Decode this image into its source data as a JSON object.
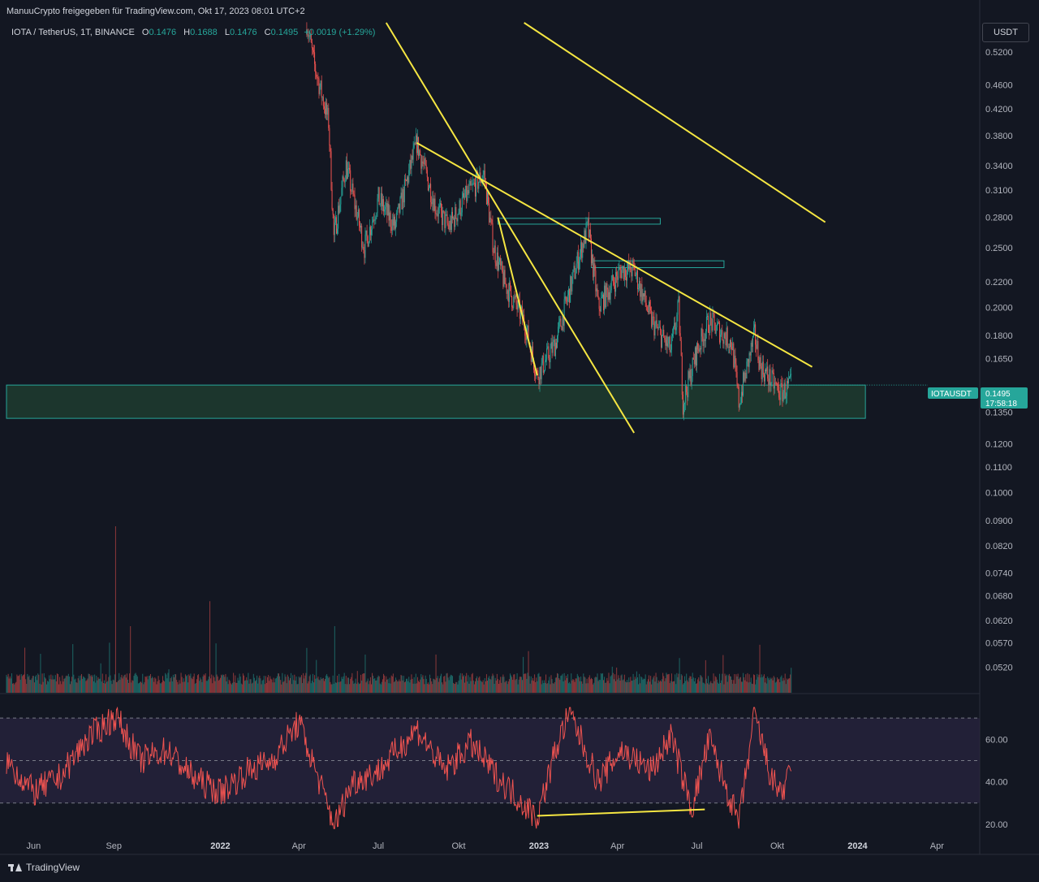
{
  "header": {
    "credit": "ManuuCrypto freigegeben für TradingView.com, Okt 17, 2023 08:01 UTC+2"
  },
  "legend": {
    "symbol": "IOTA / TetherUS, 1T, BINANCE",
    "o_label": "O",
    "o_value": "0.1476",
    "h_label": "H",
    "h_value": "0.1688",
    "l_label": "L",
    "l_value": "0.1476",
    "c_label": "C",
    "c_value": "0.1495",
    "change": "+0.0019 (+1.29%)"
  },
  "toolbar": {
    "currency": "USDT"
  },
  "price_tag": {
    "symbol": "IOTAUSDT",
    "price": "0.1495",
    "countdown": "17:58:18"
  },
  "footer": {
    "brand": "TradingView"
  },
  "colors": {
    "background": "#131722",
    "up": "#26a69a",
    "down": "#ef5350",
    "trendline": "#f5e642",
    "zone_border": "#26a69a",
    "zone_fill": "#1e3a2f",
    "rsi_line": "#ef5350",
    "rsi_band": "#2a2540",
    "price_tag_bg": "#26a69a"
  },
  "chart_data": {
    "type": "candlestick",
    "symbol": "IOTAUSDT",
    "exchange": "BINANCE",
    "interval": "1T",
    "y_scale": "log",
    "ylim": [
      0.048,
      0.58
    ],
    "price_ticks": [
      "0.5200",
      "0.4600",
      "0.4200",
      "0.3800",
      "0.3400",
      "0.3100",
      "0.2800",
      "0.2500",
      "0.2200",
      "0.2000",
      "0.1800",
      "0.1650",
      "0.1350",
      "0.1200",
      "0.1100",
      "0.1000",
      "0.0900",
      "0.0820",
      "0.0740",
      "0.0680",
      "0.0620",
      "0.0570",
      "0.0520"
    ],
    "x_ticks": [
      "Jun",
      "Sep",
      "2022",
      "Apr",
      "Jul",
      "Okt",
      "2023",
      "Apr",
      "Jul",
      "Okt",
      "2024",
      "Apr"
    ],
    "x_tick_dates": [
      "2021-06-01",
      "2021-09-01",
      "2022-01-01",
      "2022-04-01",
      "2022-07-01",
      "2022-10-01",
      "2023-01-01",
      "2023-04-01",
      "2023-07-01",
      "2023-10-01",
      "2024-01-01",
      "2024-04-01"
    ],
    "price_path": [
      {
        "date": "2022-04-10",
        "price": 0.58
      },
      {
        "date": "2022-04-18",
        "price": 0.5
      },
      {
        "date": "2022-05-05",
        "price": 0.4
      },
      {
        "date": "2022-05-11",
        "price": 0.26
      },
      {
        "date": "2022-05-25",
        "price": 0.34
      },
      {
        "date": "2022-06-15",
        "price": 0.25
      },
      {
        "date": "2022-07-01",
        "price": 0.3
      },
      {
        "date": "2022-07-20",
        "price": 0.27
      },
      {
        "date": "2022-08-14",
        "price": 0.37
      },
      {
        "date": "2022-09-05",
        "price": 0.29
      },
      {
        "date": "2022-09-20",
        "price": 0.27
      },
      {
        "date": "2022-10-08",
        "price": 0.3
      },
      {
        "date": "2022-10-30",
        "price": 0.33
      },
      {
        "date": "2022-11-10",
        "price": 0.25
      },
      {
        "date": "2022-11-22",
        "price": 0.22
      },
      {
        "date": "2022-12-15",
        "price": 0.19
      },
      {
        "date": "2022-12-30",
        "price": 0.155
      },
      {
        "date": "2023-01-20",
        "price": 0.175
      },
      {
        "date": "2023-02-15",
        "price": 0.24
      },
      {
        "date": "2023-02-26",
        "price": 0.27
      },
      {
        "date": "2023-03-10",
        "price": 0.2
      },
      {
        "date": "2023-04-05",
        "price": 0.23
      },
      {
        "date": "2023-04-20",
        "price": 0.23
      },
      {
        "date": "2023-05-10",
        "price": 0.19
      },
      {
        "date": "2023-06-01",
        "price": 0.17
      },
      {
        "date": "2023-06-10",
        "price": 0.2
      },
      {
        "date": "2023-06-15",
        "price": 0.14
      },
      {
        "date": "2023-07-01",
        "price": 0.17
      },
      {
        "date": "2023-07-15",
        "price": 0.19
      },
      {
        "date": "2023-08-10",
        "price": 0.175
      },
      {
        "date": "2023-08-18",
        "price": 0.14
      },
      {
        "date": "2023-09-05",
        "price": 0.18
      },
      {
        "date": "2023-09-12",
        "price": 0.16
      },
      {
        "date": "2023-10-05",
        "price": 0.145
      },
      {
        "date": "2023-10-17",
        "price": 0.1495
      }
    ],
    "volume_spikes": [
      {
        "date": "2021-09-03",
        "volume": 1.0
      },
      {
        "date": "2021-09-20",
        "volume": 0.4
      },
      {
        "date": "2021-12-20",
        "volume": 0.55
      },
      {
        "date": "2022-05-12",
        "volume": 0.4
      },
      {
        "date": "2023-10-17",
        "volume": 0.15
      }
    ],
    "trendlines": [
      {
        "from": {
          "date": "2022-07-10",
          "price": 0.58
        },
        "to": {
          "date": "2023-04-20",
          "price": 0.125
        }
      },
      {
        "from": {
          "date": "2022-08-14",
          "price": 0.37
        },
        "to": {
          "date": "2023-11-10",
          "price": 0.16
        }
      },
      {
        "from": {
          "date": "2022-11-15",
          "price": 0.28
        },
        "to": {
          "date": "2022-12-30",
          "price": 0.155
        }
      },
      {
        "from": {
          "date": "2022-12-15",
          "price": 0.58
        },
        "to": {
          "date": "2023-11-25",
          "price": 0.275
        }
      }
    ],
    "zones": [
      {
        "from_date": "2021-05-01",
        "to_date": "2024-01-10",
        "top": 0.1495,
        "bottom": 0.132
      },
      {
        "from_date": "2022-11-15",
        "to_date": "2023-05-20",
        "top": 0.279,
        "bottom": 0.273
      },
      {
        "from_date": "2023-03-02",
        "to_date": "2023-08-01",
        "top": 0.238,
        "bottom": 0.232
      }
    ],
    "rsi": {
      "ticks": [
        "60.00",
        "40.00",
        "20.00"
      ],
      "ylim": [
        15,
        80
      ],
      "bands": [
        30,
        50,
        70
      ],
      "path": [
        {
          "date": "2021-05-01",
          "value": 50
        },
        {
          "date": "2021-06-01",
          "value": 35
        },
        {
          "date": "2021-07-01",
          "value": 42
        },
        {
          "date": "2021-08-01",
          "value": 60
        },
        {
          "date": "2021-09-03",
          "value": 71
        },
        {
          "date": "2021-10-01",
          "value": 50
        },
        {
          "date": "2021-11-01",
          "value": 55
        },
        {
          "date": "2021-12-01",
          "value": 42
        },
        {
          "date": "2022-01-01",
          "value": 35
        },
        {
          "date": "2022-02-01",
          "value": 45
        },
        {
          "date": "2022-03-01",
          "value": 50
        },
        {
          "date": "2022-04-01",
          "value": 68
        },
        {
          "date": "2022-05-12",
          "value": 19
        },
        {
          "date": "2022-06-01",
          "value": 40
        },
        {
          "date": "2022-07-01",
          "value": 45
        },
        {
          "date": "2022-08-14",
          "value": 65
        },
        {
          "date": "2022-09-15",
          "value": 45
        },
        {
          "date": "2022-10-15",
          "value": 58
        },
        {
          "date": "2022-11-15",
          "value": 42
        },
        {
          "date": "2022-12-30",
          "value": 23
        },
        {
          "date": "2023-01-20",
          "value": 55
        },
        {
          "date": "2023-02-05",
          "value": 73
        },
        {
          "date": "2023-03-10",
          "value": 40
        },
        {
          "date": "2023-04-05",
          "value": 55
        },
        {
          "date": "2023-05-10",
          "value": 45
        },
        {
          "date": "2023-06-01",
          "value": 62
        },
        {
          "date": "2023-06-25",
          "value": 27
        },
        {
          "date": "2023-07-15",
          "value": 60
        },
        {
          "date": "2023-08-18",
          "value": 20
        },
        {
          "date": "2023-09-05",
          "value": 72
        },
        {
          "date": "2023-09-25",
          "value": 40
        },
        {
          "date": "2023-10-10",
          "value": 35
        },
        {
          "date": "2023-10-17",
          "value": 49
        }
      ],
      "divergence_line": {
        "from": {
          "date": "2022-12-30",
          "value": 24
        },
        "to": {
          "date": "2023-07-10",
          "value": 27
        }
      }
    }
  }
}
